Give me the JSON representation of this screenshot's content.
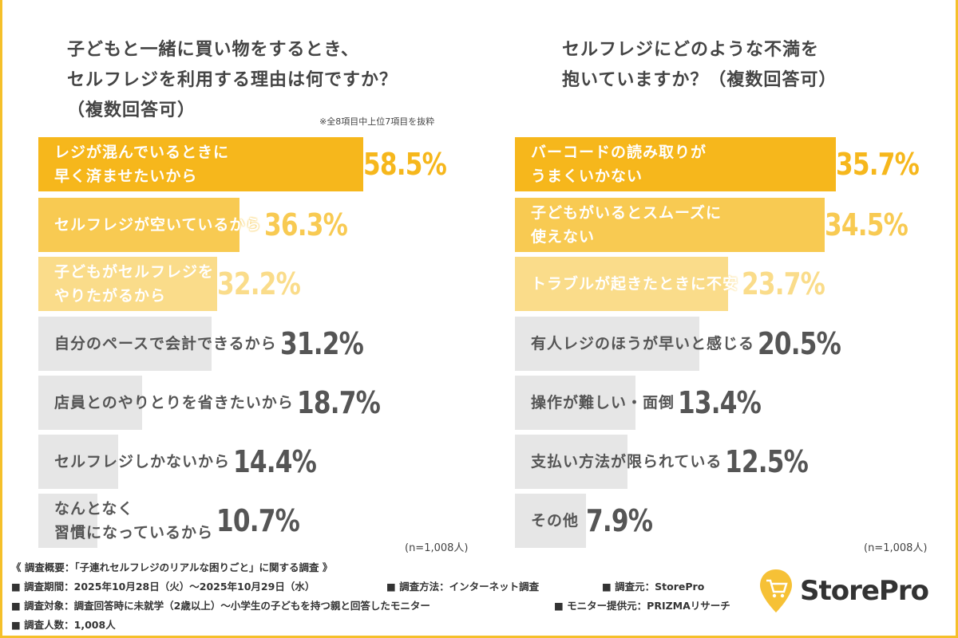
{
  "chart_data": [
    {
      "type": "bar",
      "orientation": "horizontal",
      "title": "子どもと一緒に買い物をするとき、\nセルフレジを利用する理由は何ですか？\n（複数回答可）",
      "note": "※全8項目中上位7項目を抜粋",
      "sample": "(n=1,008人)",
      "categories": [
        "レジが混んでいるときに\n早く済ませたいから",
        "セルフレジが空いているから",
        "子どもがセルフレジを\nやりたがるから",
        "自分のペースで会計できるから",
        "店員とのやりとりを省きたいから",
        "セルフレジしかないから",
        "なんとなく\n習慣になっているから"
      ],
      "values": [
        58.5,
        36.3,
        32.2,
        31.2,
        18.7,
        14.4,
        10.7
      ],
      "value_labels": [
        "58.5%",
        "36.3%",
        "32.2%",
        "31.2%",
        "18.7%",
        "14.4%",
        "10.7%"
      ],
      "bar_colors": [
        "#F6B71C",
        "#F8CA52",
        "#FADC8A",
        "#E6E6E6",
        "#E6E6E6",
        "#E6E6E6",
        "#E6E6E6"
      ],
      "value_colors": [
        "#F6B71C",
        "#F8CA52",
        "#FADC8A",
        "#555555",
        "#555555",
        "#555555",
        "#555555"
      ],
      "label_colors": [
        "#ffffff",
        "#ffffff",
        "#ffffff",
        "#555555",
        "#555555",
        "#555555",
        "#555555"
      ]
    },
    {
      "type": "bar",
      "orientation": "horizontal",
      "title": "セルフレジにどのような不満を\n抱いていますか？（複数回答可）",
      "sample": "(n=1,008人)",
      "categories": [
        "バーコードの読み取りが\nうまくいかない",
        "子どもがいるとスムーズに\n使えない",
        "トラブルが起きたときに不安",
        "有人レジのほうが早いと感じる",
        "操作が難しい・面倒",
        "支払い方法が限られている",
        "その他"
      ],
      "values": [
        35.7,
        34.5,
        23.7,
        20.5,
        13.4,
        12.5,
        7.9
      ],
      "value_labels": [
        "35.7%",
        "34.5%",
        "23.7%",
        "20.5%",
        "13.4%",
        "12.5%",
        "7.9%"
      ],
      "bar_colors": [
        "#F6B71C",
        "#F8CA52",
        "#FADC8A",
        "#E6E6E6",
        "#E6E6E6",
        "#E6E6E6",
        "#E6E6E6"
      ],
      "value_colors": [
        "#F6B71C",
        "#F8CA52",
        "#FADC8A",
        "#555555",
        "#555555",
        "#555555",
        "#555555"
      ],
      "label_colors": [
        "#ffffff",
        "#ffffff",
        "#ffffff",
        "#555555",
        "#555555",
        "#555555",
        "#555555"
      ]
    }
  ],
  "footer": {
    "heading": "《 調査概要：「子連れセルフレジのリアルな困りごと」に関する調査 》",
    "period": "■ 調査期間：2025年10月28日（火）～2025年10月29日（水）",
    "method": "■ 調査方法：インターネット調査",
    "source": "■ 調査元：StorePro",
    "target": "■ 調査対象：調査回答時に未就学（2歳以上）～小学生の子どもを持つ親と回答したモニター",
    "provider": "■ モニター提供元：PRIZMAリサーチ",
    "count": "■ 調査人数：1,008人"
  },
  "logo": {
    "text": "StorePro",
    "icon": "cart-pin-icon",
    "color": "#F6C136"
  }
}
